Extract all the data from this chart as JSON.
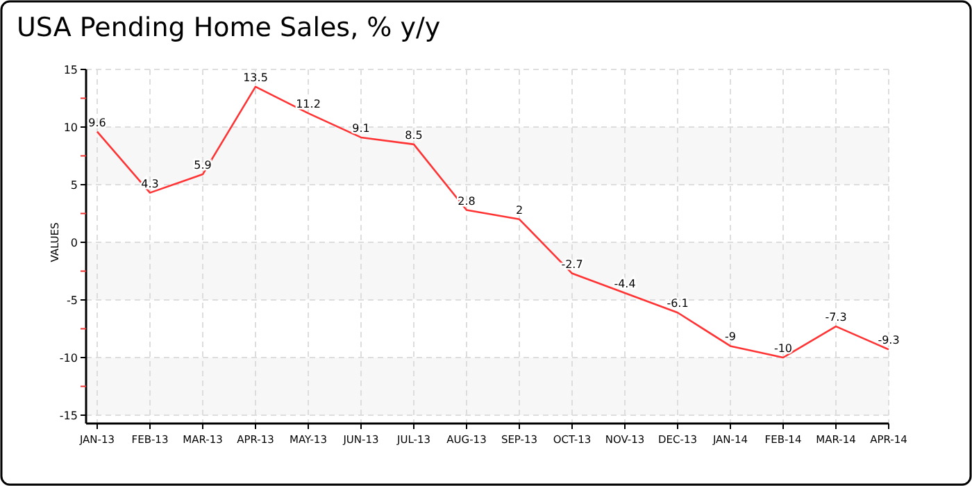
{
  "chart_data": {
    "type": "line",
    "title": "USA Pending Home Sales, % y/y",
    "ylabel": "VALUES",
    "categories": [
      "JAN-13",
      "FEB-13",
      "MAR-13",
      "APR-13",
      "MAY-13",
      "JUN-13",
      "JUL-13",
      "AUG-13",
      "SEP-13",
      "OCT-13",
      "NOV-13",
      "DEC-13",
      "JAN-14",
      "FEB-14",
      "MAR-14",
      "APR-14"
    ],
    "series": [
      {
        "color": "#ff3333",
        "values": [
          9.6,
          4.3,
          5.9,
          13.5,
          11.2,
          9.1,
          8.5,
          2.8,
          2,
          -2.7,
          -4.4,
          -6.1,
          -9,
          -10,
          -7.3,
          -9.3
        ]
      }
    ],
    "ylim": [
      -15,
      15
    ],
    "yticks": [
      -15,
      {
        "value": -12.5,
        "label": null
      },
      -10,
      {
        "value": -7.5,
        "label": null
      },
      -5,
      {
        "value": -2.5,
        "label": null
      },
      0,
      {
        "value": 2.5,
        "label": null
      },
      5,
      {
        "value": 7.5,
        "label": null
      },
      10,
      {
        "value": 12.5,
        "label": null
      },
      15
    ],
    "grid": true,
    "data_labels": true,
    "marker": "none",
    "line_style": "solid"
  }
}
